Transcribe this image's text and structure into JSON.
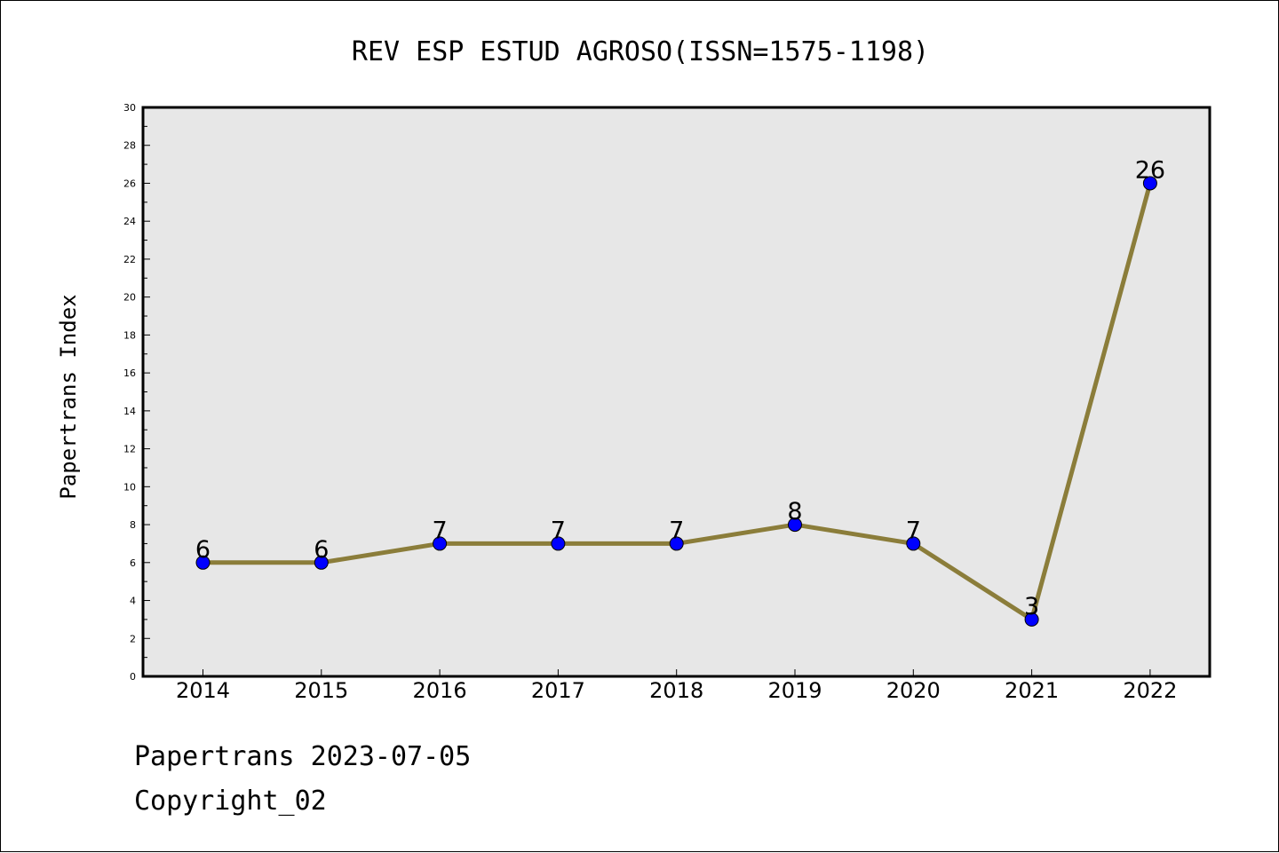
{
  "chart_data": {
    "type": "line",
    "title": "REV ESP ESTUD AGROSO(ISSN=1575-1198)",
    "ylabel": "Papertrans Index",
    "xlabel": "",
    "categories": [
      "2014",
      "2015",
      "2016",
      "2017",
      "2018",
      "2019",
      "2020",
      "2021",
      "2022"
    ],
    "values": [
      6,
      6,
      7,
      7,
      7,
      8,
      7,
      3,
      26
    ],
    "data_labels": [
      "6",
      "6",
      "7",
      "7",
      "7",
      "8",
      "7",
      "3",
      "26"
    ],
    "ylim": [
      0,
      30
    ],
    "y_ticks": [
      "0",
      "2",
      "4",
      "6",
      "8",
      "10",
      "12",
      "14",
      "16",
      "18",
      "20",
      "22",
      "24",
      "26",
      "28",
      "30"
    ],
    "grid": false,
    "legend": "none",
    "colors": {
      "line": "#8B7D3A",
      "marker": "#0000FF",
      "plot_background": "#E7E7E7"
    }
  },
  "footer": {
    "line1": "Papertrans 2023-07-05",
    "line2": "Copyright_02"
  }
}
